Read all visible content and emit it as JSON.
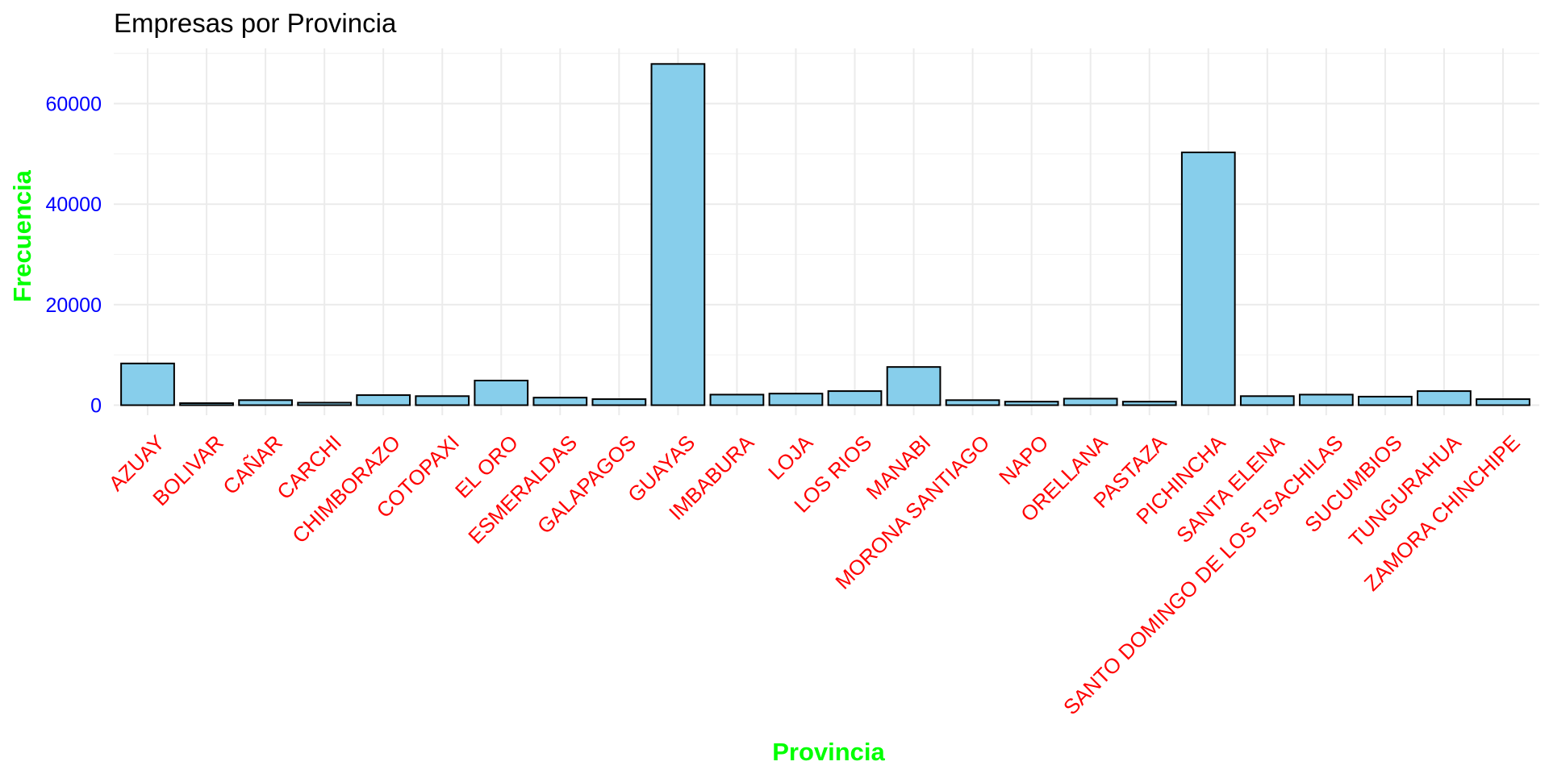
{
  "chart_data": {
    "type": "bar",
    "title": "Empresas por Provincia",
    "xlabel": "Provincia",
    "ylabel": "Frecuencia",
    "ylim": [
      -2000,
      71000
    ],
    "yticks": [
      0,
      20000,
      40000,
      60000
    ],
    "yticklabels": [
      "0",
      "20000",
      "40000",
      "60000"
    ],
    "categories": [
      "AZUAY",
      "BOLIVAR",
      "CAÑAR",
      "CARCHI",
      "CHIMBORAZO",
      "COTOPAXI",
      "EL ORO",
      "ESMERALDAS",
      "GALAPAGOS",
      "GUAYAS",
      "IMBABURA",
      "LOJA",
      "LOS RIOS",
      "MANABI",
      "MORONA SANTIAGO",
      "NAPO",
      "ORELLANA",
      "PASTAZA",
      "PICHINCHA",
      "SANTA ELENA",
      "SANTO DOMINGO DE LOS TSACHILAS",
      "SUCUMBIOS",
      "TUNGURAHUA",
      "ZAMORA CHINCHIPE"
    ],
    "values": [
      8300,
      400,
      1000,
      500,
      2000,
      1800,
      4900,
      1500,
      1200,
      67900,
      2100,
      2300,
      2800,
      7600,
      1000,
      700,
      1300,
      700,
      50300,
      1800,
      2100,
      1700,
      2800,
      1200
    ],
    "grid": true,
    "legend": "none",
    "colors": {
      "bar_fill": "#87CEEB",
      "bar_stroke": "#000000",
      "xtick": "#FF0000",
      "ytick": "#0000FF",
      "axis_title": "#00FF00",
      "title": "#000000"
    }
  }
}
